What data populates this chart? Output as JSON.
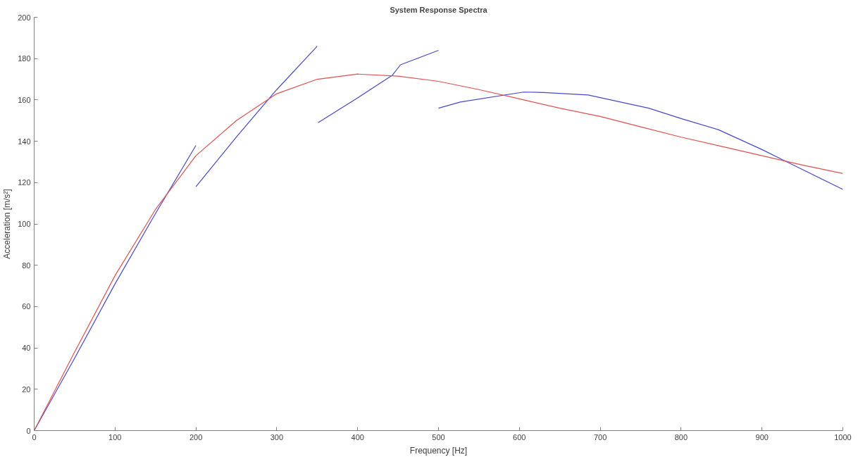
{
  "chart_data": {
    "type": "line",
    "title": "System Response Spectra",
    "xlabel": "Frequency [Hz]",
    "ylabel": "Acceleration [m/s²]",
    "xlim": [
      0,
      1000
    ],
    "ylim": [
      0,
      200
    ],
    "xticks": [
      0,
      100,
      200,
      300,
      400,
      500,
      600,
      700,
      800,
      900,
      1000
    ],
    "yticks": [
      0,
      20,
      40,
      60,
      80,
      100,
      120,
      140,
      160,
      180,
      200
    ],
    "grid": false,
    "marker": "none",
    "line_style": "solid",
    "series": [
      {
        "color": "#4848c8",
        "x": [
          0,
          50,
          100,
          150,
          200
        ],
        "values": [
          0,
          35,
          71,
          105,
          138
        ]
      },
      {
        "color": "#4848c8",
        "x": [
          200,
          250,
          300,
          350
        ],
        "values": [
          118,
          142,
          165,
          186
        ]
      },
      {
        "color": "#4848c8",
        "x": [
          351,
          400,
          443,
          453,
          500
        ],
        "values": [
          149,
          161,
          172,
          177,
          184
        ]
      },
      {
        "color": "#4848c8",
        "x": [
          500,
          527,
          605,
          630,
          685,
          760,
          800,
          846,
          900,
          931,
          1000
        ],
        "values": [
          156,
          159,
          163.8,
          163.6,
          162.4,
          156,
          151,
          145.6,
          136,
          130,
          116.7
        ]
      },
      {
        "color": "#e05050",
        "x": [
          0,
          50,
          100,
          150,
          200,
          250,
          300,
          350,
          400,
          450,
          500,
          550,
          600,
          650,
          700,
          750,
          800,
          850,
          900,
          950,
          1000
        ],
        "values": [
          0,
          38,
          75,
          107,
          133,
          150,
          163,
          170,
          172.5,
          171.5,
          169,
          165,
          160.5,
          156,
          152,
          147,
          142,
          137.5,
          133,
          128.5,
          124.4
        ]
      }
    ]
  }
}
